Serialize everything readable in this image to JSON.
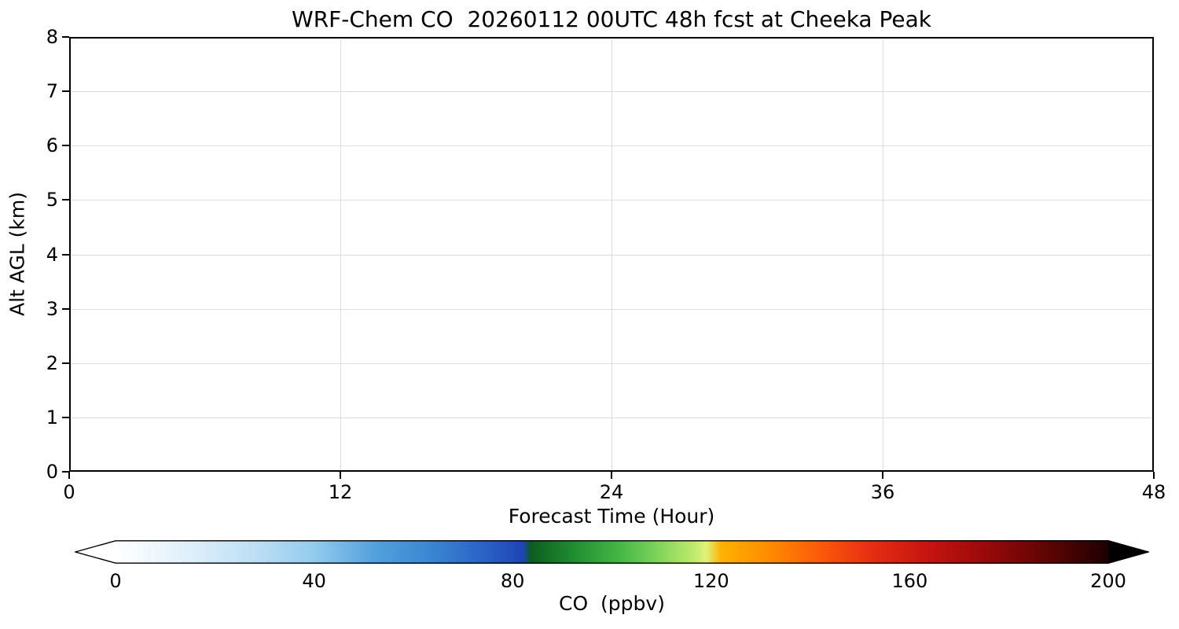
{
  "chart_data": {
    "type": "heatmap",
    "title": "WRF-Chem CO  20260112 00UTC 48h fcst at Cheeka Peak",
    "xlabel": "Forecast Time (Hour)",
    "ylabel": "Alt AGL (km)",
    "xlim": [
      0,
      48
    ],
    "ylim": [
      0,
      8
    ],
    "x_ticks": [
      0,
      12,
      24,
      36,
      48
    ],
    "y_ticks": [
      0,
      1,
      2,
      3,
      4,
      5,
      6,
      7,
      8
    ],
    "grid": true,
    "grid_color": "#dcdcdc",
    "plot_area_note": "plot area is blank/white — no CO field values are visibly rendered",
    "colorbar": {
      "label": "CO  (ppbv)",
      "ticks": [
        0,
        40,
        80,
        120,
        160,
        200
      ],
      "range": [
        0,
        200
      ],
      "extend": "both",
      "under_color": "#ffffff",
      "over_color": "#000000",
      "stops": [
        {
          "pos": 0,
          "color": "#ffffff"
        },
        {
          "pos": 3,
          "color": "#f2f9fd"
        },
        {
          "pos": 8,
          "color": "#dceefa"
        },
        {
          "pos": 14,
          "color": "#bedff5"
        },
        {
          "pos": 20,
          "color": "#93cbee"
        },
        {
          "pos": 26,
          "color": "#54a1dd"
        },
        {
          "pos": 32,
          "color": "#3a84d2"
        },
        {
          "pos": 37,
          "color": "#2b63c6"
        },
        {
          "pos": 41,
          "color": "#1e45b5"
        },
        {
          "pos": 41.8,
          "color": "#0e5c20"
        },
        {
          "pos": 46,
          "color": "#1f8c2f"
        },
        {
          "pos": 51,
          "color": "#46b948"
        },
        {
          "pos": 55,
          "color": "#86d65c"
        },
        {
          "pos": 58,
          "color": "#b9e96c"
        },
        {
          "pos": 59.5,
          "color": "#e2f179"
        },
        {
          "pos": 61,
          "color": "#ffb100"
        },
        {
          "pos": 66,
          "color": "#ff8a00"
        },
        {
          "pos": 71,
          "color": "#fb5a0a"
        },
        {
          "pos": 76,
          "color": "#e62f12"
        },
        {
          "pos": 82,
          "color": "#c41410"
        },
        {
          "pos": 88,
          "color": "#960909"
        },
        {
          "pos": 94,
          "color": "#5e0404"
        },
        {
          "pos": 100,
          "color": "#1c0101"
        }
      ]
    }
  }
}
